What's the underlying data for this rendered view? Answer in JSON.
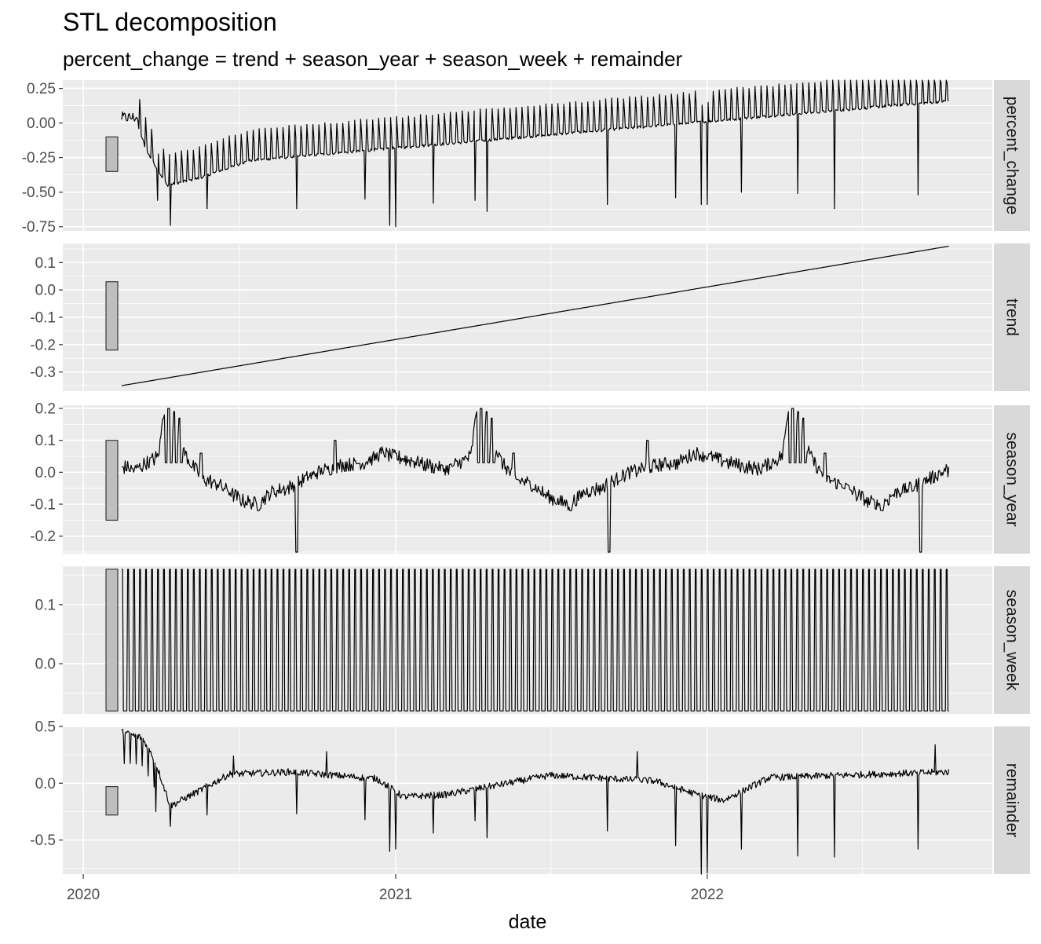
{
  "chart_data": {
    "type": "line",
    "title": "STL decomposition",
    "subtitle": "percent_change = trend + season_year + season_week + remainder",
    "xlabel": "date",
    "x_ticks": [
      "2020",
      "2021",
      "2022"
    ],
    "x_range": [
      "2019-12-08",
      "2022-12-01"
    ],
    "data_start": "2020-02-15",
    "data_end": "2022-10-11",
    "panels": [
      {
        "name": "percent_change",
        "ylim": [
          -0.78,
          0.31
        ],
        "yticks": [
          0.25,
          0.0,
          -0.25,
          -0.5,
          -0.75
        ],
        "ytick_labels": [
          "0.25",
          "0.00",
          "-0.25",
          "-0.50",
          "-0.75"
        ],
        "scale_bar": [
          -0.35,
          -0.1
        ],
        "trend_start": -0.35,
        "trend_end": 0.16,
        "weekly_amplitude": 0.22,
        "noise": 0.02,
        "early": [
          {
            "x": "2020-02-15",
            "y": 0.05
          },
          {
            "x": "2020-03-01",
            "y": 0.05
          },
          {
            "x": "2020-03-15",
            "y": -0.2
          },
          {
            "x": "2020-04-08",
            "y": -0.45
          },
          {
            "x": "2020-05-15",
            "y": -0.4
          }
        ],
        "spikes": [
          {
            "x": "2020-03-28",
            "y": -0.56
          },
          {
            "x": "2020-04-12",
            "y": -0.74
          },
          {
            "x": "2020-05-25",
            "y": -0.62
          },
          {
            "x": "2020-09-07",
            "y": -0.62
          },
          {
            "x": "2020-11-26",
            "y": -0.55
          },
          {
            "x": "2020-12-25",
            "y": -0.74
          },
          {
            "x": "2021-01-01",
            "y": -0.75
          },
          {
            "x": "2021-02-14",
            "y": -0.58
          },
          {
            "x": "2021-04-04",
            "y": -0.56
          },
          {
            "x": "2021-04-18",
            "y": -0.64
          },
          {
            "x": "2021-09-06",
            "y": -0.59
          },
          {
            "x": "2021-11-25",
            "y": -0.54
          },
          {
            "x": "2021-12-25",
            "y": -0.59
          },
          {
            "x": "2022-01-01",
            "y": -0.59
          },
          {
            "x": "2022-02-10",
            "y": -0.5
          },
          {
            "x": "2022-04-17",
            "y": -0.51
          },
          {
            "x": "2022-05-30",
            "y": -0.62
          },
          {
            "x": "2022-09-05",
            "y": -0.52
          }
        ]
      },
      {
        "name": "trend",
        "ylim": [
          -0.37,
          0.17
        ],
        "yticks": [
          0.1,
          0.0,
          -0.1,
          -0.2,
          -0.3
        ],
        "ytick_labels": [
          "0.1",
          "0.0",
          "-0.1",
          "-0.2",
          "-0.3"
        ],
        "scale_bar": [
          -0.22,
          0.03
        ],
        "trend_start": -0.35,
        "trend_end": 0.16
      },
      {
        "name": "season_year",
        "ylim": [
          -0.255,
          0.21
        ],
        "yticks": [
          0.2,
          0.1,
          0.0,
          -0.1,
          -0.2
        ],
        "ytick_labels": [
          "0.2",
          "0.1",
          "0.0",
          "-0.1",
          "-0.2"
        ],
        "scale_bar": [
          -0.15,
          0.1
        ],
        "profile": [
          {
            "doy": 0,
            "y": 0.05
          },
          {
            "doy": 40,
            "y": 0.02
          },
          {
            "doy": 60,
            "y": 0.01
          },
          {
            "doy": 75,
            "y": 0.03
          },
          {
            "doy": 88,
            "y": 0.05
          },
          {
            "doy": 95,
            "y": 0.2
          },
          {
            "doy": 103,
            "y": 0.17
          },
          {
            "doy": 112,
            "y": 0.1
          },
          {
            "doy": 125,
            "y": 0.03
          },
          {
            "doy": 140,
            "y": -0.02
          },
          {
            "doy": 160,
            "y": -0.04
          },
          {
            "doy": 175,
            "y": -0.07
          },
          {
            "doy": 188,
            "y": -0.09
          },
          {
            "doy": 205,
            "y": -0.1
          },
          {
            "doy": 222,
            "y": -0.06
          },
          {
            "doy": 240,
            "y": -0.05
          },
          {
            "doy": 260,
            "y": -0.02
          },
          {
            "doy": 275,
            "y": 0.0
          },
          {
            "doy": 300,
            "y": 0.02
          },
          {
            "doy": 330,
            "y": 0.03
          },
          {
            "doy": 350,
            "y": 0.06
          },
          {
            "doy": 365,
            "y": 0.05
          }
        ],
        "spikes": [
          {
            "doy": 100,
            "y": 0.2
          },
          {
            "doy": 107,
            "y": 0.19
          },
          {
            "doy": 113,
            "y": 0.17
          },
          {
            "doy": 138,
            "y": 0.06
          },
          {
            "doy": 205,
            "y": -0.12
          },
          {
            "doy": 250,
            "y": -0.25
          },
          {
            "doy": 295,
            "y": 0.1
          }
        ]
      },
      {
        "name": "season_week",
        "ylim": [
          -0.085,
          0.165
        ],
        "yticks": [
          0.1,
          0.0
        ],
        "ytick_labels": [
          "0.1",
          "0.0"
        ],
        "scale_bar": [
          -0.08,
          0.16
        ],
        "weekly_high": 0.16,
        "weekly_low": -0.08
      },
      {
        "name": "remainder",
        "ylim": [
          -0.8,
          0.5
        ],
        "yticks": [
          0.5,
          0.0,
          -0.5
        ],
        "ytick_labels": [
          "0.5",
          "0.0",
          "-0.5"
        ],
        "scale_bar": [
          -0.28,
          -0.03
        ],
        "noise": 0.03,
        "early": [
          {
            "x": "2020-02-15",
            "y": 0.45
          },
          {
            "x": "2020-03-10",
            "y": 0.4
          },
          {
            "x": "2020-03-25",
            "y": 0.2
          },
          {
            "x": "2020-04-12",
            "y": -0.2
          },
          {
            "x": "2020-05-20",
            "y": -0.05
          },
          {
            "x": "2020-06-20",
            "y": 0.08
          },
          {
            "x": "2020-09-01",
            "y": 0.1
          },
          {
            "x": "2020-12-10",
            "y": 0.04
          },
          {
            "x": "2021-01-10",
            "y": -0.12
          },
          {
            "x": "2021-03-01",
            "y": -0.1
          },
          {
            "x": "2021-07-01",
            "y": 0.07
          },
          {
            "x": "2021-11-01",
            "y": 0.02
          },
          {
            "x": "2021-12-20",
            "y": -0.1
          },
          {
            "x": "2022-01-20",
            "y": -0.15
          },
          {
            "x": "2022-03-15",
            "y": 0.05
          },
          {
            "x": "2022-10-11",
            "y": 0.1
          }
        ],
        "spikes": [
          {
            "x": "2020-03-26",
            "y": -0.25
          },
          {
            "x": "2020-04-12",
            "y": -0.38
          },
          {
            "x": "2020-05-25",
            "y": -0.28
          },
          {
            "x": "2020-06-25",
            "y": 0.24
          },
          {
            "x": "2020-09-07",
            "y": -0.27
          },
          {
            "x": "2020-10-12",
            "y": 0.28
          },
          {
            "x": "2020-11-26",
            "y": -0.32
          },
          {
            "x": "2020-12-25",
            "y": -0.6
          },
          {
            "x": "2021-01-01",
            "y": -0.58
          },
          {
            "x": "2021-02-14",
            "y": -0.44
          },
          {
            "x": "2021-04-04",
            "y": -0.33
          },
          {
            "x": "2021-04-18",
            "y": -0.48
          },
          {
            "x": "2021-09-06",
            "y": -0.42
          },
          {
            "x": "2021-10-11",
            "y": 0.28
          },
          {
            "x": "2021-11-25",
            "y": -0.55
          },
          {
            "x": "2021-12-25",
            "y": -0.8
          },
          {
            "x": "2022-01-01",
            "y": -0.79
          },
          {
            "x": "2022-02-10",
            "y": -0.58
          },
          {
            "x": "2022-04-17",
            "y": -0.64
          },
          {
            "x": "2022-05-30",
            "y": -0.65
          },
          {
            "x": "2022-09-05",
            "y": -0.58
          },
          {
            "x": "2022-09-25",
            "y": 0.34
          }
        ]
      }
    ]
  }
}
